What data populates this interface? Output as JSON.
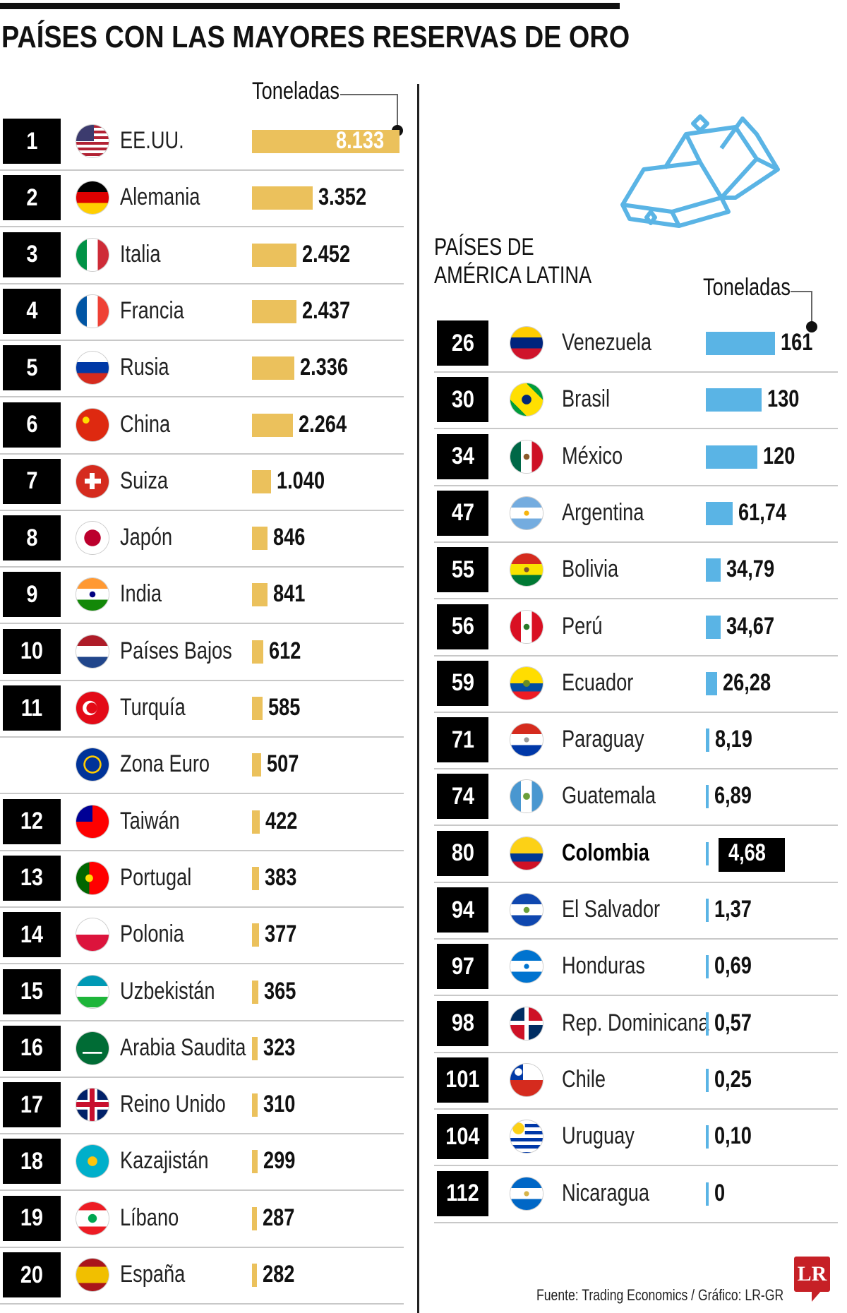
{
  "title": "PAÍSES CON LAS MAYORES RESERVAS DE ORO",
  "unit_label": "Toneladas",
  "latam_title_line1": "PAÍSES DE",
  "latam_title_line2": "AMÉRICA LATINA",
  "source": "Fuente: Trading Economics / Gráfico: LR-GR",
  "logo_text": "LR",
  "colors": {
    "gold": "#ebc15c",
    "blue": "#5ab4e5",
    "black": "#000000"
  },
  "chart_data": [
    {
      "type": "bar",
      "title": "PAÍSES CON LAS MAYORES RESERVAS DE ORO",
      "xlabel": "Toneladas",
      "orientation": "horizontal",
      "rows": [
        {
          "rank": "1",
          "country": "EE.UU.",
          "value": 8133,
          "label": "8.133",
          "flag": "usa"
        },
        {
          "rank": "2",
          "country": "Alemania",
          "value": 3352,
          "label": "3.352",
          "flag": "germany"
        },
        {
          "rank": "3",
          "country": "Italia",
          "value": 2452,
          "label": "2.452",
          "flag": "italy"
        },
        {
          "rank": "4",
          "country": "Francia",
          "value": 2437,
          "label": "2.437",
          "flag": "france"
        },
        {
          "rank": "5",
          "country": "Rusia",
          "value": 2336,
          "label": "2.336",
          "flag": "russia"
        },
        {
          "rank": "6",
          "country": "China",
          "value": 2264,
          "label": "2.264",
          "flag": "china"
        },
        {
          "rank": "7",
          "country": "Suiza",
          "value": 1040,
          "label": "1.040",
          "flag": "switzerland"
        },
        {
          "rank": "8",
          "country": "Japón",
          "value": 846,
          "label": "846",
          "flag": "japan"
        },
        {
          "rank": "9",
          "country": "India",
          "value": 841,
          "label": "841",
          "flag": "india"
        },
        {
          "rank": "10",
          "country": "Países Bajos",
          "value": 612,
          "label": "612",
          "flag": "netherlands"
        },
        {
          "rank": "11",
          "country": "Turquía",
          "value": 585,
          "label": "585",
          "flag": "turkey"
        },
        {
          "rank": "",
          "country": "Zona Euro",
          "value": 507,
          "label": "507",
          "flag": "eu"
        },
        {
          "rank": "12",
          "country": "Taiwán",
          "value": 422,
          "label": "422",
          "flag": "taiwan"
        },
        {
          "rank": "13",
          "country": "Portugal",
          "value": 383,
          "label": "383",
          "flag": "portugal"
        },
        {
          "rank": "14",
          "country": "Polonia",
          "value": 377,
          "label": "377",
          "flag": "poland"
        },
        {
          "rank": "15",
          "country": "Uzbekistán",
          "value": 365,
          "label": "365",
          "flag": "uzbekistan"
        },
        {
          "rank": "16",
          "country": "Arabia Saudita",
          "value": 323,
          "label": "323",
          "flag": "saudi"
        },
        {
          "rank": "17",
          "country": "Reino Unido",
          "value": 310,
          "label": "310",
          "flag": "uk"
        },
        {
          "rank": "18",
          "country": "Kazajistán",
          "value": 299,
          "label": "299",
          "flag": "kazakhstan"
        },
        {
          "rank": "19",
          "country": "Líbano",
          "value": 287,
          "label": "287",
          "flag": "lebanon"
        },
        {
          "rank": "20",
          "country": "España",
          "value": 282,
          "label": "282",
          "flag": "spain"
        }
      ]
    },
    {
      "type": "bar",
      "title": "PAÍSES DE AMÉRICA LATINA",
      "xlabel": "Toneladas",
      "orientation": "horizontal",
      "rows": [
        {
          "rank": "26",
          "country": "Venezuela",
          "value": 161,
          "label": "161",
          "flag": "venezuela"
        },
        {
          "rank": "30",
          "country": "Brasil",
          "value": 130,
          "label": "130",
          "flag": "brazil"
        },
        {
          "rank": "34",
          "country": "México",
          "value": 120,
          "label": "120",
          "flag": "mexico"
        },
        {
          "rank": "47",
          "country": "Argentina",
          "value": 61.74,
          "label": "61,74",
          "flag": "argentina"
        },
        {
          "rank": "55",
          "country": "Bolivia",
          "value": 34.79,
          "label": "34,79",
          "flag": "bolivia"
        },
        {
          "rank": "56",
          "country": "Perú",
          "value": 34.67,
          "label": "34,67",
          "flag": "peru"
        },
        {
          "rank": "59",
          "country": "Ecuador",
          "value": 26.28,
          "label": "26,28",
          "flag": "ecuador"
        },
        {
          "rank": "71",
          "country": "Paraguay",
          "value": 8.19,
          "label": "8,19",
          "flag": "paraguay"
        },
        {
          "rank": "74",
          "country": "Guatemala",
          "value": 6.89,
          "label": "6,89",
          "flag": "guatemala"
        },
        {
          "rank": "80",
          "country": "Colombia",
          "value": 4.68,
          "label": "4,68",
          "flag": "colombia",
          "highlight": true
        },
        {
          "rank": "94",
          "country": "El Salvador",
          "value": 1.37,
          "label": "1,37",
          "flag": "elsalvador"
        },
        {
          "rank": "97",
          "country": "Honduras",
          "value": 0.69,
          "label": "0,69",
          "flag": "honduras"
        },
        {
          "rank": "98",
          "country": "Rep. Dominicana",
          "value": 0.57,
          "label": "0,57",
          "flag": "dominican"
        },
        {
          "rank": "101",
          "country": "Chile",
          "value": 0.25,
          "label": "0,25",
          "flag": "chile"
        },
        {
          "rank": "104",
          "country": "Uruguay",
          "value": 0.1,
          "label": "0,10",
          "flag": "uruguay"
        },
        {
          "rank": "112",
          "country": "Nicaragua",
          "value": 0,
          "label": "0",
          "flag": "nicaragua"
        }
      ]
    }
  ]
}
